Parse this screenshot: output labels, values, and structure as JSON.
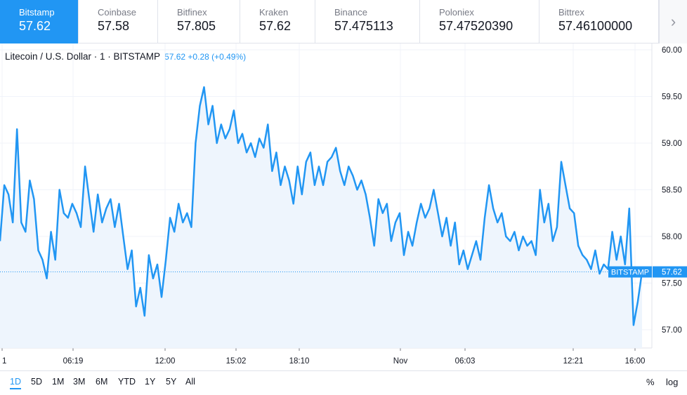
{
  "exchanges": [
    {
      "name": "Bitstamp",
      "price": "57.62"
    },
    {
      "name": "Coinbase",
      "price": "57.58"
    },
    {
      "name": "Bitfinex",
      "price": "57.805"
    },
    {
      "name": "Kraken",
      "price": "57.62"
    },
    {
      "name": "Binance",
      "price": "57.475113"
    },
    {
      "name": "Poloniex",
      "price": "57.47520390"
    },
    {
      "name": "Bittrex",
      "price": "57.46100000"
    }
  ],
  "active_exchange": "Bitstamp",
  "next_icon": "chevron-right-icon",
  "legend": {
    "title": "Litecoin / U.S. Dollar · 1 · BITSTAMP",
    "values": "57.62  +0.28 (+0.49%)"
  },
  "price_label": {
    "exchange": "BITSTAMP",
    "price": "57.62"
  },
  "ranges": [
    "1D",
    "5D",
    "1M",
    "3M",
    "6M",
    "YTD",
    "1Y",
    "5Y",
    "All"
  ],
  "active_range": "1D",
  "options": {
    "percent": "%",
    "log": "log"
  },
  "colors": {
    "line": "#2196f3",
    "area": "#eef5fd",
    "accent": "#2196f3"
  },
  "chart_data": {
    "type": "line",
    "title": "Litecoin / U.S. Dollar · 1 · BITSTAMP",
    "ylim": [
      56.8,
      60.05
    ],
    "y_ticks": [
      "57.00",
      "57.50",
      "58.00",
      "58.50",
      "59.00",
      "59.50",
      "60.00"
    ],
    "x_ticks": [
      "1",
      "06:19",
      "12:00",
      "15:02",
      "18:10",
      "Nov",
      "06:03",
      "12:21",
      "16:00"
    ],
    "last_price": 57.62,
    "grid": true,
    "series": [
      {
        "values": [
          57.95,
          58.55,
          58.45,
          58.15,
          59.15,
          58.15,
          58.05,
          58.6,
          58.4,
          57.85,
          57.75,
          57.55,
          58.05,
          57.75,
          58.5,
          58.25,
          58.2,
          58.35,
          58.25,
          58.1,
          58.75,
          58.4,
          58.05,
          58.45,
          58.15,
          58.3,
          58.4,
          58.1,
          58.35,
          58.0,
          57.65,
          57.85,
          57.25,
          57.45,
          57.15,
          57.8,
          57.55,
          57.7,
          57.35,
          57.75,
          58.2,
          58.05,
          58.35,
          58.15,
          58.25,
          58.1,
          59.0,
          59.4,
          59.6,
          59.2,
          59.4,
          59.0,
          59.2,
          59.05,
          59.15,
          59.35,
          59.0,
          59.1,
          58.9,
          59.0,
          58.85,
          59.05,
          58.95,
          59.2,
          58.7,
          58.9,
          58.55,
          58.75,
          58.6,
          58.35,
          58.75,
          58.45,
          58.8,
          58.9,
          58.55,
          58.75,
          58.55,
          58.8,
          58.85,
          58.95,
          58.7,
          58.55,
          58.75,
          58.65,
          58.5,
          58.6,
          58.45,
          58.2,
          57.9,
          58.4,
          58.25,
          58.35,
          57.95,
          58.15,
          58.25,
          57.8,
          58.05,
          57.9,
          58.15,
          58.35,
          58.2,
          58.3,
          58.5,
          58.25,
          58.0,
          58.2,
          57.9,
          58.15,
          57.7,
          57.85,
          57.65,
          57.8,
          57.95,
          57.75,
          58.2,
          58.55,
          58.3,
          58.15,
          58.25,
          58.0,
          57.95,
          58.05,
          57.85,
          58.0,
          57.9,
          57.95,
          57.8,
          58.5,
          58.15,
          58.35,
          57.95,
          58.1,
          58.8,
          58.55,
          58.3,
          58.25,
          57.9,
          57.8,
          57.75,
          57.65,
          57.85,
          57.6,
          57.7,
          57.65,
          58.05,
          57.75,
          58.0,
          57.7,
          58.3,
          57.05,
          57.3,
          57.62
        ]
      }
    ]
  }
}
